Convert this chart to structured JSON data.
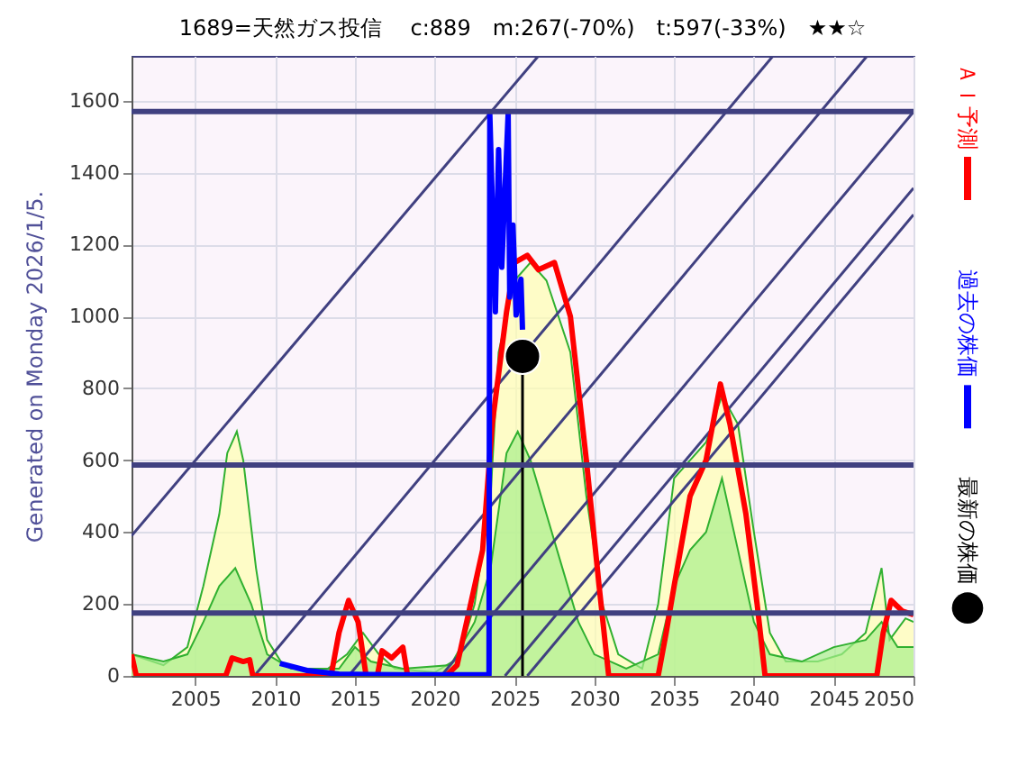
{
  "chart_data": {
    "type": "line",
    "title": "1689=天然ガス投信　 c:889　m:267(-70%)　t:597(-33%)　★★☆",
    "ylabel": "Generated on Monday 2026/1/5.",
    "xlim": [
      2001,
      2050
    ],
    "xticks": [
      2005,
      2010,
      2015,
      2020,
      2025,
      2030,
      2035,
      2040,
      2045,
      2050
    ],
    "ylim": [
      0,
      1725
    ],
    "yticks": [
      0,
      200,
      400,
      600,
      800,
      1000,
      1200,
      1400,
      1600
    ],
    "grid": true,
    "legend": "right",
    "ref_lines": [
      {
        "axis": "y",
        "value": 1570,
        "color": "#404080"
      },
      {
        "axis": "y",
        "value": 587,
        "color": "#404080"
      },
      {
        "axis": "y",
        "value": 175,
        "color": "#404080"
      }
    ],
    "series": [
      {
        "type": "area",
        "color": "#ffffb0",
        "x": [
          2001,
          2003,
          2004.5,
          2005.5,
          2006.5,
          2007,
          2007.6,
          2008,
          2008.8,
          2009.5,
          2010.5,
          2013,
          2014.5,
          2015.5,
          2016.5,
          2017.5,
          2020,
          2021.5,
          2022.5,
          2023.5,
          2024,
          2025,
          2026,
          2027,
          2028.5,
          2029.5,
          2030.5,
          2031.5,
          2033,
          2034,
          2035,
          2036,
          2037,
          2038,
          2039,
          2040,
          2041,
          2042,
          2044,
          2045.5,
          2047,
          2048,
          2048.5,
          2049.5,
          2050
        ],
        "values": [
          60,
          30,
          80,
          250,
          450,
          620,
          680,
          600,
          300,
          100,
          30,
          10,
          60,
          120,
          60,
          20,
          10,
          50,
          200,
          500,
          900,
          1100,
          1150,
          1100,
          900,
          500,
          200,
          60,
          20,
          200,
          550,
          600,
          650,
          780,
          700,
          400,
          120,
          40,
          40,
          60,
          120,
          300,
          100,
          160,
          150
        ]
      },
      {
        "type": "area",
        "color": "#a8f08c",
        "x": [
          2001,
          2003,
          2004.5,
          2005.5,
          2006.5,
          2007.5,
          2008.5,
          2009.5,
          2011,
          2014,
          2015,
          2016,
          2018,
          2021,
          2022.5,
          2023.5,
          2024.5,
          2025.2,
          2026,
          2027,
          2028,
          2029,
          2030,
          2032,
          2034,
          2035,
          2036,
          2037,
          2038,
          2039,
          2040,
          2041,
          2043,
          2045,
          2047,
          2048,
          2049,
          2050
        ],
        "values": [
          60,
          40,
          60,
          150,
          250,
          300,
          200,
          60,
          20,
          20,
          80,
          40,
          20,
          30,
          150,
          300,
          620,
          680,
          600,
          450,
          300,
          150,
          60,
          20,
          60,
          250,
          350,
          400,
          550,
          350,
          150,
          60,
          40,
          80,
          100,
          150,
          80,
          80
        ]
      },
      {
        "color": "#404080",
        "x": [
          2001,
          2026.5
        ],
        "values": [
          390,
          1725
        ]
      },
      {
        "color": "#404080",
        "x": [
          2008.7,
          2041.2
        ],
        "values": [
          0,
          1725
        ]
      },
      {
        "color": "#404080",
        "x": [
          2014.6,
          2047.1
        ],
        "values": [
          0,
          1725
        ]
      },
      {
        "color": "#404080",
        "x": [
          2020.4,
          2050
        ],
        "values": [
          0,
          1569
        ]
      },
      {
        "color": "#404080",
        "x": [
          2024.4,
          2050
        ],
        "values": [
          0,
          1357
        ]
      },
      {
        "color": "#404080",
        "x": [
          2025.8,
          2050
        ],
        "values": [
          0,
          1283
        ]
      },
      {
        "color": "#000000",
        "x": [
          2025.5,
          2025.5
        ],
        "values": [
          0,
          889
        ]
      },
      {
        "name": "ＡＩ予測",
        "color": "#ff0000",
        "x": [
          2001,
          2001.3,
          2006.9,
          2007.3,
          2008,
          2008.4,
          2008.6,
          2013.5,
          2014,
          2014.6,
          2015.2,
          2015.7,
          2016.4,
          2016.7,
          2017.3,
          2018,
          2018.3,
          2020.7,
          2021.4,
          2022.1,
          2023,
          2023.6,
          2024.5,
          2025,
          2025.8,
          2026.5,
          2027.5,
          2028.5,
          2029.5,
          2030.3,
          2030.9,
          2034,
          2034.5,
          2035,
          2036,
          2037,
          2037.9,
          2038.5,
          2039.5,
          2040.2,
          2040.7,
          2047.7,
          2048.1,
          2048.6,
          2049.3,
          2050
        ],
        "values": [
          60,
          0,
          0,
          50,
          40,
          45,
          0,
          0,
          120,
          210,
          150,
          0,
          0,
          70,
          50,
          80,
          0,
          0,
          30,
          170,
          350,
          700,
          1013,
          1150,
          1170,
          1130,
          1150,
          1000,
          600,
          250,
          0,
          0,
          120,
          250,
          500,
          600,
          812,
          700,
          450,
          200,
          0,
          0,
          120,
          210,
          180,
          170
        ]
      },
      {
        "name": "過去の株価",
        "color": "#0000ff",
        "x": [
          2010.3,
          2012,
          2014,
          2016,
          2018,
          2020,
          2022,
          2023.4,
          2023.45,
          2023.8,
          2024.0,
          2024.2,
          2024.6,
          2024.7,
          2024.9,
          2025.1,
          2025.4,
          2025.5
        ],
        "values": [
          35,
          15,
          5,
          4,
          3,
          3,
          3,
          3,
          1565,
          1013,
          1464,
          1137,
          1565,
          1054,
          1254,
          1004,
          1104,
          963
        ]
      },
      {
        "type": "scatter",
        "name": "最新の株価",
        "color": "#000000",
        "marker": "circle",
        "x": [
          2025.5
        ],
        "values": [
          889
        ]
      }
    ]
  }
}
